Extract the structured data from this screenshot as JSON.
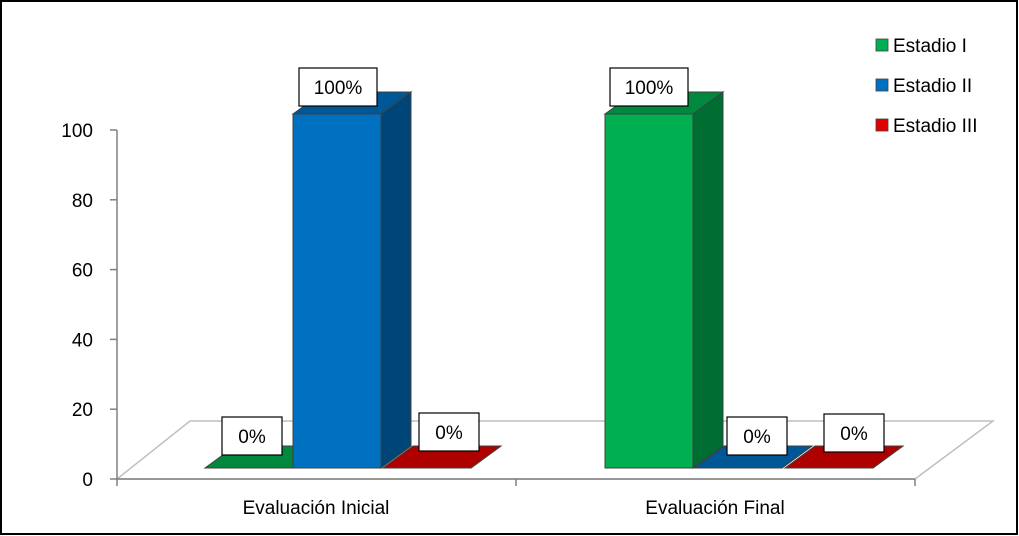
{
  "chart_data": {
    "type": "bar",
    "categories": [
      "Evaluación Inicial",
      "Evaluación Final"
    ],
    "series": [
      {
        "name": "Estadio I",
        "values": [
          0,
          100
        ],
        "labels": [
          "0%",
          "100%"
        ],
        "color": "#00b050"
      },
      {
        "name": "Estadio II",
        "values": [
          100,
          0
        ],
        "labels": [
          "100%",
          "0%"
        ],
        "color": "#0070c0"
      },
      {
        "name": "Estadio III",
        "values": [
          0,
          0
        ],
        "labels": [
          "0%",
          "0%"
        ],
        "color": "#e00000"
      }
    ],
    "yticks": [
      "0",
      "20",
      "40",
      "60",
      "80",
      "100"
    ],
    "ylim": [
      0,
      100
    ],
    "legend": "top-right",
    "style": "3d-column",
    "grid": false
  }
}
